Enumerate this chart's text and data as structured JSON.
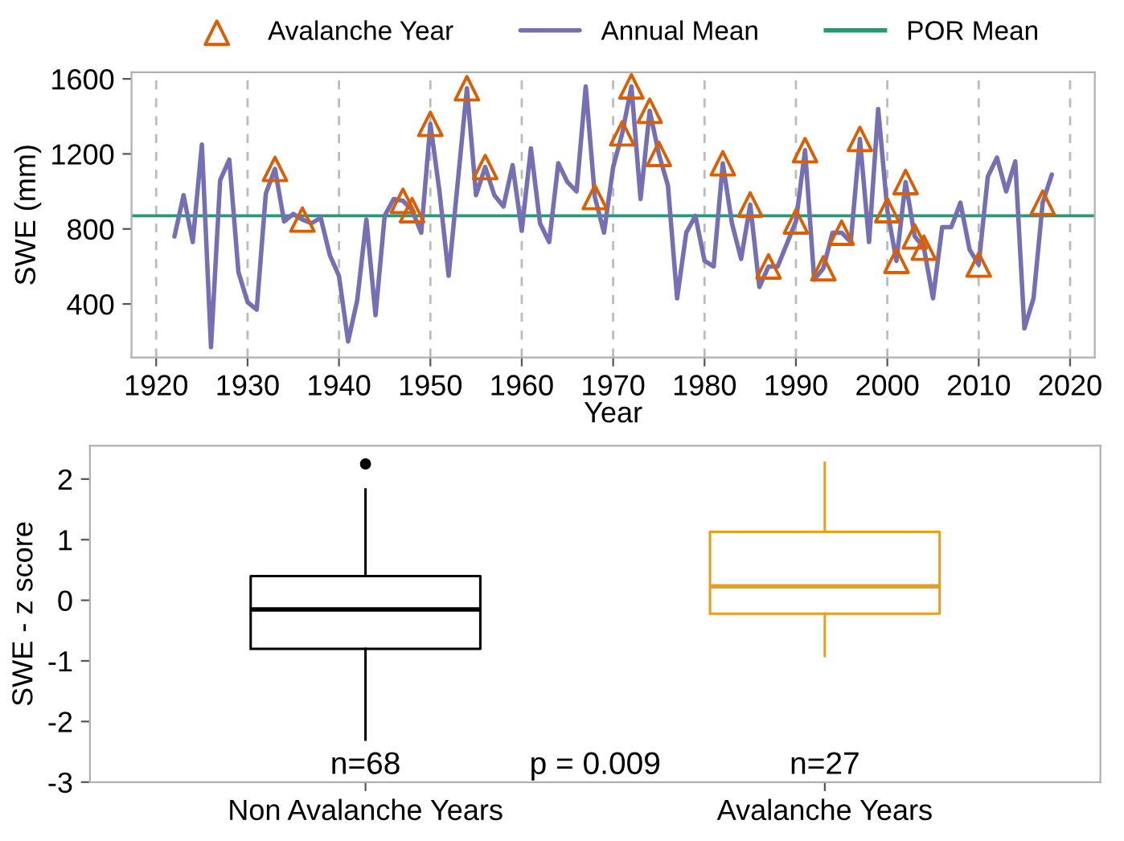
{
  "chart_data": [
    {
      "type": "line",
      "xlabel": "Year",
      "ylabel": "SWE (mm)",
      "xlim": [
        1917.3,
        2022.7
      ],
      "ylim": [
        115,
        1635
      ],
      "xticks": [
        1920,
        1930,
        1940,
        1950,
        1960,
        1970,
        1980,
        1990,
        2000,
        2010,
        2020
      ],
      "yticks": [
        400,
        800,
        1200,
        1600
      ],
      "grid": "x",
      "legend": "top",
      "series": [
        {
          "name": "Avalanche Year",
          "type": "scatter",
          "marker": "triangle",
          "color": "#d95f02",
          "x": [
            1933,
            1936,
            1947,
            1948,
            1950,
            1954,
            1956,
            1968,
            1971,
            1972,
            1974,
            1975,
            1982,
            1985,
            1987,
            1990,
            1991,
            1993,
            1995,
            1997,
            2000,
            2001,
            2002,
            2003,
            2004,
            2010,
            2017
          ],
          "values": [
            1120,
            850,
            950,
            900,
            1360,
            1550,
            1130,
            970,
            1310,
            1560,
            1430,
            1200,
            1150,
            930,
            600,
            840,
            1220,
            590,
            780,
            1280,
            900,
            630,
            1050,
            760,
            700,
            610,
            940
          ]
        },
        {
          "name": "Annual Mean",
          "type": "line",
          "color": "#7570b3",
          "x": [
            1922,
            1923,
            1924,
            1925,
            1926,
            1927,
            1928,
            1929,
            1930,
            1931,
            1932,
            1933,
            1934,
            1935,
            1936,
            1937,
            1938,
            1939,
            1940,
            1941,
            1942,
            1943,
            1944,
            1945,
            1946,
            1947,
            1948,
            1949,
            1950,
            1951,
            1952,
            1953,
            1954,
            1955,
            1956,
            1957,
            1958,
            1959,
            1960,
            1961,
            1962,
            1963,
            1964,
            1965,
            1966,
            1967,
            1968,
            1969,
            1970,
            1971,
            1972,
            1973,
            1974,
            1975,
            1976,
            1977,
            1978,
            1979,
            1980,
            1981,
            1982,
            1983,
            1984,
            1985,
            1986,
            1987,
            1988,
            1989,
            1990,
            1991,
            1992,
            1993,
            1994,
            1995,
            1996,
            1997,
            1998,
            1999,
            2000,
            2001,
            2002,
            2003,
            2004,
            2005,
            2006,
            2007,
            2008,
            2009,
            2010,
            2011,
            2012,
            2013,
            2014,
            2015,
            2016,
            2017,
            2018
          ],
          "values": [
            760,
            980,
            730,
            1250,
            170,
            1060,
            1170,
            570,
            410,
            370,
            990,
            1120,
            840,
            880,
            850,
            830,
            860,
            660,
            550,
            200,
            420,
            850,
            340,
            870,
            960,
            950,
            900,
            780,
            1360,
            1000,
            550,
            1050,
            1550,
            980,
            1130,
            980,
            920,
            1140,
            790,
            1230,
            830,
            730,
            1150,
            1050,
            1000,
            1560,
            970,
            780,
            1130,
            1310,
            1560,
            960,
            1430,
            1200,
            1030,
            430,
            780,
            870,
            630,
            600,
            1150,
            830,
            640,
            930,
            490,
            600,
            600,
            720,
            840,
            1220,
            530,
            590,
            780,
            780,
            730,
            1280,
            730,
            1440,
            900,
            630,
            1050,
            760,
            700,
            430,
            810,
            810,
            940,
            690,
            610,
            1080,
            1180,
            1000,
            1160,
            270,
            430,
            940,
            1090
          ]
        }
      ],
      "ref_lines": [
        {
          "axis": "y",
          "value": 870,
          "label": "POR Mean",
          "color": "#1b9e77"
        }
      ]
    },
    {
      "type": "box",
      "ylabel": "SWE - z score",
      "categories": [
        "Non Avalanche Years",
        "Avalanche Years"
      ],
      "colors": [
        "#000000",
        "#e6a020"
      ],
      "ylim": [
        -3,
        2.55
      ],
      "yticks": [
        -3,
        -2,
        -1,
        0,
        1,
        2
      ],
      "grid": false,
      "boxes": [
        {
          "low": -2.3,
          "q1": -0.8,
          "median": -0.15,
          "q3": 0.4,
          "high": 1.83,
          "outliers": [
            2.25
          ]
        },
        {
          "low": -0.92,
          "q1": -0.22,
          "median": 0.23,
          "q3": 1.13,
          "high": 2.27
        }
      ],
      "annotations": [
        "n=68",
        "p = 0.009",
        "n=27"
      ]
    }
  ]
}
